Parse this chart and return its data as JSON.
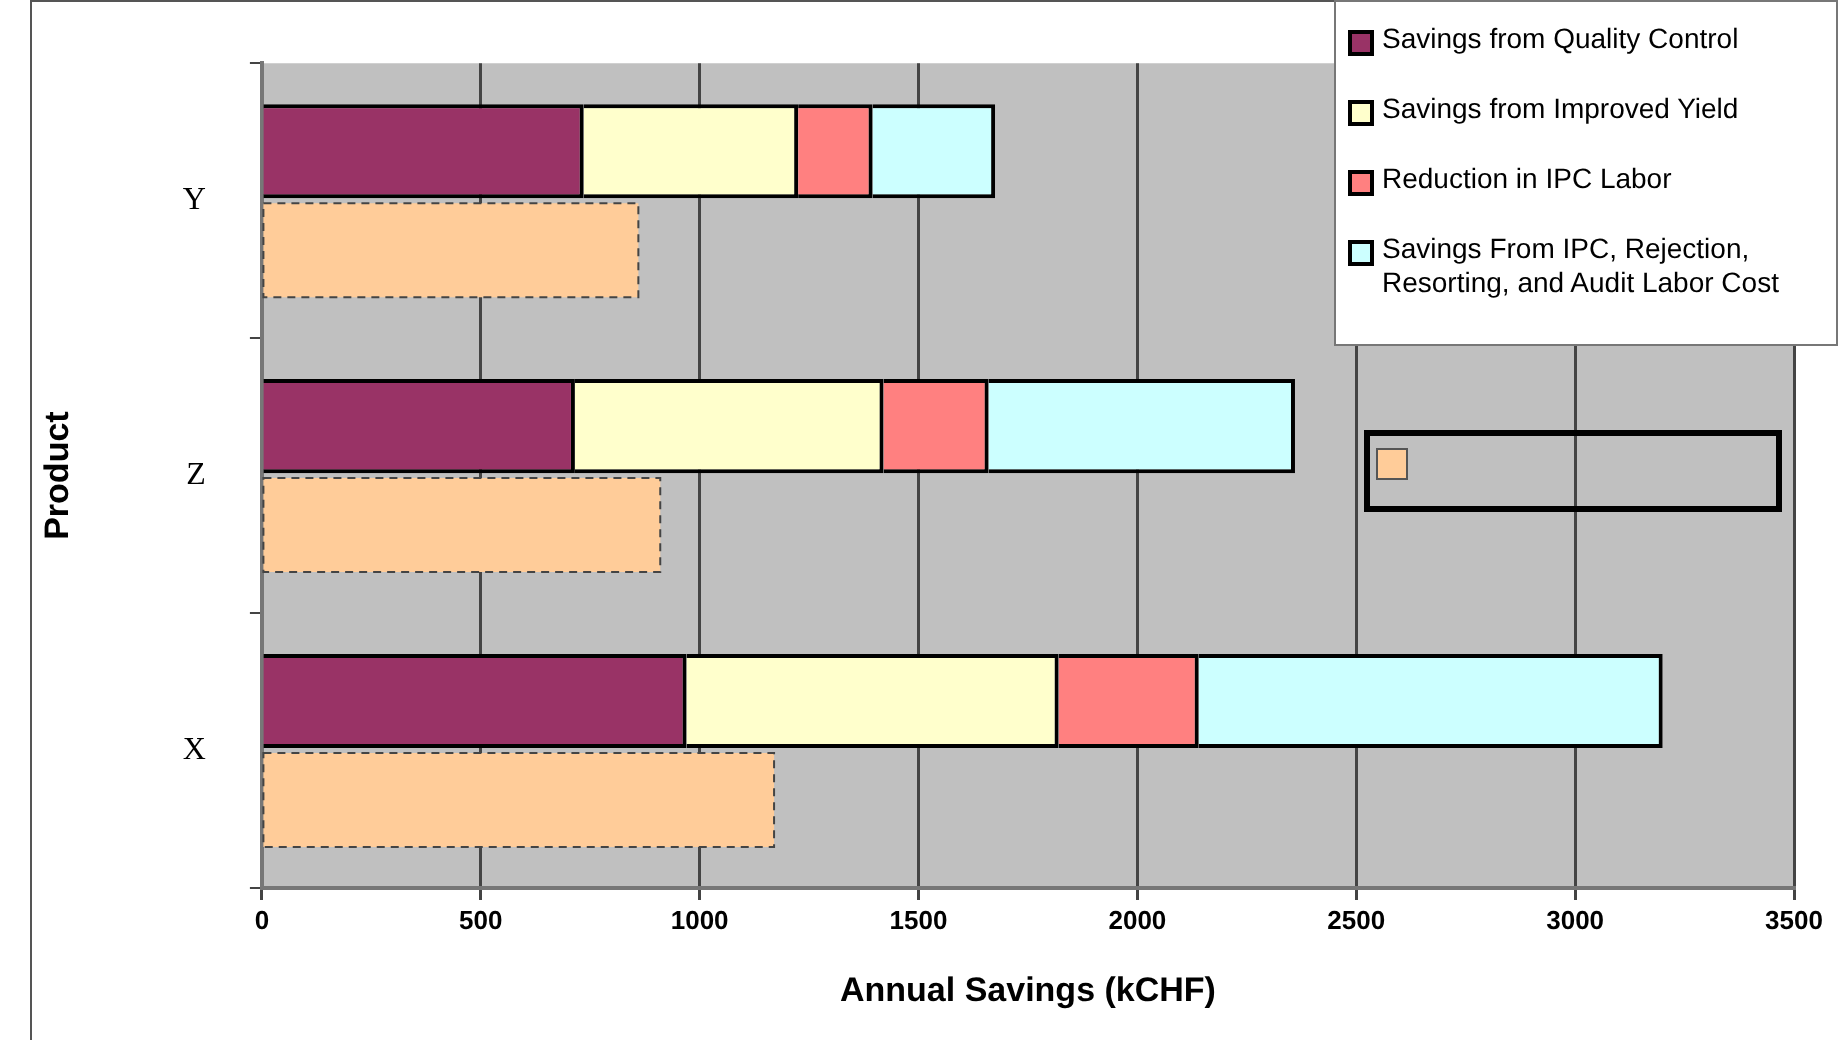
{
  "chart_data": {
    "type": "bar",
    "orientation": "horizontal",
    "xlabel": "Annual Savings (kCHF)",
    "ylabel": "Product",
    "categories": [
      "Y",
      "Z",
      "X"
    ],
    "series": [
      {
        "name": "Savings from Quality Control",
        "color": "#993366",
        "values": [
          735,
          715,
          970
        ],
        "base": [
          0,
          0,
          0
        ]
      },
      {
        "name": "Savings from Improved Yield",
        "color": "#ffffcc",
        "values": [
          490,
          705,
          850
        ],
        "base": [
          735,
          715,
          970
        ]
      },
      {
        "name": "Reduction in IPC Labor",
        "color": "#ff8080",
        "values": [
          170,
          240,
          320
        ],
        "base": [
          1225,
          1420,
          1820
        ]
      },
      {
        "name": "Savings From IPC, Rejection, Resorting, and Audit Labor Cost",
        "color": "#ccffff",
        "values": [
          280,
          700,
          1060
        ],
        "base": [
          1395,
          1660,
          2140
        ]
      },
      {
        "color": "#ffcc99",
        "values": [
          860,
          910,
          1170
        ],
        "line_style": "dashed"
      }
    ],
    "xlim": [
      0,
      3500
    ],
    "xticks": [
      0,
      500,
      1000,
      1500,
      2000,
      2500,
      3000,
      3500
    ],
    "grid": "x",
    "legend": "top right"
  }
}
